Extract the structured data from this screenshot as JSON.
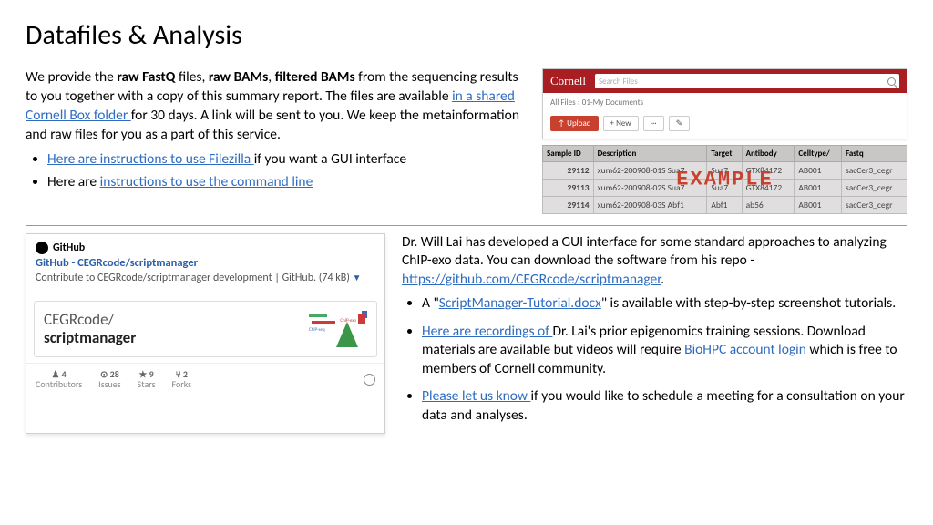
{
  "title": "Datafiles & Analysis",
  "p1a": "We provide the ",
  "p1b": "raw FastQ",
  "p1c": " files, ",
  "p1d": "raw BAMs",
  "p1e": ", ",
  "p1f": "filtered BAMs",
  "p1g": " from the sequencing results to you together with a copy of this summary report. The files are available ",
  "link_box": "in a shared Cornell Box folder ",
  "p1h": "for 30 days. A link will be sent to you. We keep the metainformation and raw files for you as a part of this service.",
  "b1_link": "Here are instructions to use Filezilla ",
  "b1_rest": "if you want a GUI interface",
  "b2_pre": "Here are ",
  "b2_link": "instructions to use the command line",
  "cornell_logo": "Cornell",
  "search_ph": "Search Files",
  "crumb": "All Files  ›  01-My Documents",
  "upload": "↑ Upload",
  "new_btn": "+ New",
  "dots": "···",
  "pen": "✎",
  "th": [
    "Sample ID",
    "Description",
    "Target",
    "Antibody",
    "Celltype/",
    "Fastq"
  ],
  "rows": [
    [
      "29112",
      "xum62-200908-01S Sua7",
      "Sua7",
      "GTX84172",
      "AB001",
      "sacCer3_cegr"
    ],
    [
      "29113",
      "xum62-200908-02S Sua7",
      "Sua7",
      "GTX84172",
      "AB001",
      "sacCer3_cegr"
    ],
    [
      "29114",
      "xum62-200908-03S Abf1",
      "Abf1",
      "ab56",
      "AB001",
      "sacCer3_cegr"
    ]
  ],
  "example": "EXAMPLE",
  "gh_name": "GitHub",
  "gh_repo_link": "GitHub - CEGRcode/scriptmanager",
  "gh_desc": "Contribute to CEGRcode/scriptmanager development | GitHub. (74 kB) ",
  "gh_arrow": "▼",
  "gh_owner": "CEGRcode/",
  "gh_rname": "scriptmanager",
  "stats": [
    {
      "n": "4",
      "l": "Contributors"
    },
    {
      "n": "28",
      "l": "Issues"
    },
    {
      "n": "9",
      "l": "Stars"
    },
    {
      "n": "2",
      "l": "Forks"
    }
  ],
  "s_ico": [
    "♟",
    "⊙",
    "★",
    "⑂"
  ],
  "r1": "Dr. Will Lai has developed a GUI interface for some standard approaches to analyzing ChIP-exo data. You can download the software from his repo - ",
  "r1_link": "https://github.com/CEGRcode/scriptmanager",
  "r1_end": ".",
  "rb1a": "A \"",
  "rb1_link": "ScriptManager-Tutorial.docx",
  "rb1b": "\" is available with step-by-step screenshot tutorials.",
  "rb2_link": "Here are recordings of ",
  "rb2a": "Dr. Lai's prior epigenomics training sessions. Download materials are available but videos will require ",
  "rb2_link2": "BioHPC account login ",
  "rb2b": "which is free to members of Cornell community.",
  "rb3_link": "Please let us know ",
  "rb3a": "if you would like to schedule a meeting for a consultation on your data and analyses.",
  "chart_lbl1": "ChIP-exo",
  "chart_lbl2": "ChIP-seq"
}
